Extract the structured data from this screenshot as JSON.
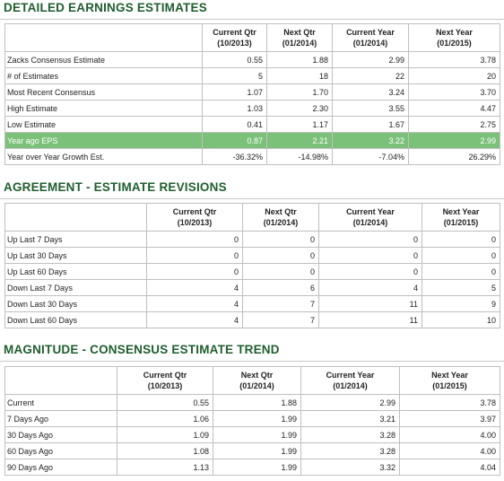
{
  "sections": [
    {
      "title": "DETAILED EARNINGS ESTIMATES",
      "columns": [
        {
          "label": "Current Qtr",
          "period": "(10/2013)"
        },
        {
          "label": "Next Qtr",
          "period": "(01/2014)"
        },
        {
          "label": "Current Year",
          "period": "(01/2014)"
        },
        {
          "label": "Next Year",
          "period": "(01/2015)"
        }
      ],
      "rows": [
        {
          "label": "Zacks Consensus Estimate",
          "cells": [
            "0.55",
            "1.88",
            "2.99",
            "3.78"
          ]
        },
        {
          "label": "# of Estimates",
          "cells": [
            "5",
            "18",
            "22",
            "20"
          ]
        },
        {
          "label": "Most Recent Consensus",
          "cells": [
            "1.07",
            "1.70",
            "3.24",
            "3.70"
          ]
        },
        {
          "label": "High Estimate",
          "cells": [
            "1.03",
            "2.30",
            "3.55",
            "4.47"
          ]
        },
        {
          "label": "Low Estimate",
          "cells": [
            "0.41",
            "1.17",
            "1.67",
            "2.75"
          ]
        },
        {
          "label": "Year ago EPS",
          "cells": [
            "0.87",
            "2.21",
            "3.22",
            "2.99"
          ],
          "highlighted": true
        },
        {
          "label": "Year over Year Growth Est.",
          "cells": [
            "-36.32%",
            "-14.98%",
            "-7.04%",
            "26.29%"
          ]
        }
      ]
    },
    {
      "title": "AGREEMENT - ESTIMATE REVISIONS",
      "columns": [
        {
          "label": "Current Qtr",
          "period": "(10/2013)"
        },
        {
          "label": "Next Qtr",
          "period": "(01/2014)"
        },
        {
          "label": "Current Year",
          "period": "(01/2014)"
        },
        {
          "label": "Next Year",
          "period": "(01/2015)"
        }
      ],
      "rows": [
        {
          "label": "Up Last 7 Days",
          "cells": [
            "0",
            "0",
            "0",
            "0"
          ]
        },
        {
          "label": "Up Last 30 Days",
          "cells": [
            "0",
            "0",
            "0",
            "0"
          ]
        },
        {
          "label": "Up Last 60 Days",
          "cells": [
            "0",
            "0",
            "0",
            "0"
          ]
        },
        {
          "label": "Down Last 7 Days",
          "cells": [
            "4",
            "6",
            "4",
            "5"
          ]
        },
        {
          "label": "Down Last 30 Days",
          "cells": [
            "4",
            "7",
            "11",
            "9"
          ]
        },
        {
          "label": "Down Last 60 Days",
          "cells": [
            "4",
            "7",
            "11",
            "10"
          ]
        }
      ]
    },
    {
      "title": "MAGNITUDE - CONSENSUS ESTIMATE TREND",
      "columns": [
        {
          "label": "Current Qtr",
          "period": "(10/2013)"
        },
        {
          "label": "Next Qtr",
          "period": "(01/2014)"
        },
        {
          "label": "Current Year",
          "period": "(01/2014)"
        },
        {
          "label": "Next Year",
          "period": "(01/2015)"
        }
      ],
      "rows": [
        {
          "label": "Current",
          "cells": [
            "0.55",
            "1.88",
            "2.99",
            "3.78"
          ]
        },
        {
          "label": "7 Days Ago",
          "cells": [
            "1.06",
            "1.99",
            "3.21",
            "3.97"
          ]
        },
        {
          "label": "30 Days Ago",
          "cells": [
            "1.09",
            "1.99",
            "3.28",
            "4.00"
          ]
        },
        {
          "label": "60 Days Ago",
          "cells": [
            "1.08",
            "1.99",
            "3.28",
            "4.00"
          ]
        },
        {
          "label": "90 Days Ago",
          "cells": [
            "1.13",
            "1.99",
            "3.32",
            "4.04"
          ]
        }
      ]
    }
  ]
}
